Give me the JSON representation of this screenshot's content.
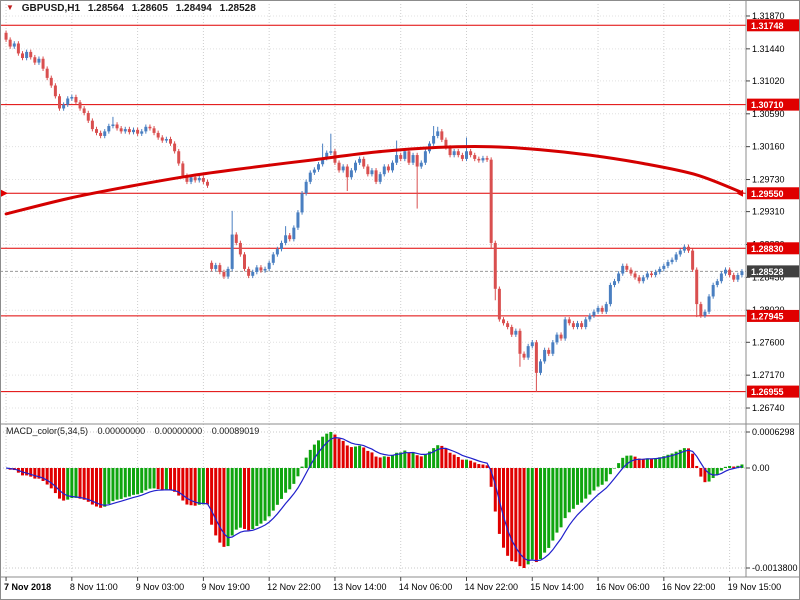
{
  "symbol_line": {
    "symbol": "GBPUSD,H1",
    "open": "1.28564",
    "high": "1.28605",
    "low": "1.28494",
    "close": "1.28528"
  },
  "macd_panel": {
    "label": "MACD_color(5,34,5)",
    "value1": "0.00000000",
    "value2": "0.00000000",
    "value3": "0.00089019",
    "axis": {
      "top": "0.0006298",
      "zero": "0.00",
      "bottom": "-0.0013800"
    }
  },
  "colors": {
    "bull": "#4a7fc1",
    "bear": "#d94f4f",
    "level_line": "#e00000",
    "ma_line": "#d40000",
    "badge_level": "#e00000",
    "badge_current": "#404040",
    "macd_up": "#0fa50f",
    "macd_down": "#e00000",
    "signal_line": "#2020cc",
    "grid_v": "#cdcdcd",
    "grid_h": "#e0e0e0",
    "frame": "#8c8c8c",
    "axis_text": "#000000"
  },
  "chart_data": {
    "type": "candlestick",
    "title": "GBPUSD,H1",
    "symbol": "GBPUSD",
    "timeframe": "H1",
    "price_range": {
      "top": 1.32066,
      "bottom": 1.26544
    },
    "price_axis_ticks": [
      "1.31870",
      "1.31440",
      "1.31020",
      "1.30590",
      "1.30160",
      "1.29730",
      "1.29310",
      "1.28880",
      "1.28450",
      "1.28020",
      "1.27600",
      "1.27170",
      "1.26740"
    ],
    "time_ticks": [
      {
        "label": "7 Nov 2018",
        "bar": 0
      },
      {
        "label": "8 Nov 11:00",
        "bar": 16
      },
      {
        "label": "9 Nov 03:00",
        "bar": 32
      },
      {
        "label": "9 Nov 19:00",
        "bar": 48
      },
      {
        "label": "12 Nov 22:00",
        "bar": 64
      },
      {
        "label": "13 Nov 14:00",
        "bar": 80
      },
      {
        "label": "14 Nov 06:00",
        "bar": 96
      },
      {
        "label": "14 Nov 22:00",
        "bar": 112
      },
      {
        "label": "15 Nov 14:00",
        "bar": 128
      },
      {
        "label": "16 Nov 06:00",
        "bar": 144
      },
      {
        "label": "16 Nov 22:00",
        "bar": 160
      },
      {
        "label": "19 Nov 15:00",
        "bar": 176
      }
    ],
    "level_lines": [
      {
        "price": 1.31748,
        "label": "1.31748"
      },
      {
        "price": 1.3071,
        "label": "1.30710"
      },
      {
        "price": 1.2955,
        "label": "1.29550",
        "edge_arrows": true
      },
      {
        "price": 1.2883,
        "label": "1.28830"
      },
      {
        "price": 1.27945,
        "label": "1.27945"
      },
      {
        "price": 1.26955,
        "label": "1.26955"
      }
    ],
    "current_price": {
      "value": 1.28528,
      "label": "1.28528"
    },
    "default_wick": 0.0003,
    "open_overrides": {
      "0": 1.3165,
      "50": 1.2864
    },
    "wick_overrides": {
      "26": {
        "h": 1.3055
      },
      "55": {
        "h": 1.2932
      },
      "68": {
        "h": 1.2912
      },
      "77": {
        "h": 1.302
      },
      "79": {
        "h": 1.3033
      },
      "83": {
        "l": 1.2958
      },
      "95": {
        "h": 1.3024
      },
      "100": {
        "l": 1.2935
      },
      "104": {
        "h": 1.3043
      },
      "105": {
        "h": 1.3042
      },
      "112": {
        "h": 1.3028
      },
      "118": {
        "l": 1.2882
      },
      "119": {
        "l": 1.2815
      },
      "125": {
        "l": 1.2728
      },
      "129": {
        "l": 1.2695
      },
      "165": {
        "h": 1.2888
      },
      "168": {
        "l": 1.2793
      }
    },
    "closes": [
      1.3156,
      1.3147,
      1.3151,
      1.3138,
      1.3132,
      1.314,
      1.3133,
      1.3126,
      1.3131,
      1.3118,
      1.3106,
      1.3096,
      1.3082,
      1.3066,
      1.3071,
      1.3079,
      1.3081,
      1.3074,
      1.3066,
      1.306,
      1.305,
      1.3039,
      1.3034,
      1.303,
      1.3036,
      1.3043,
      1.3045,
      1.304,
      1.3036,
      1.3039,
      1.3035,
      1.3038,
      1.3033,
      1.3036,
      1.3042,
      1.304,
      1.3034,
      1.3028,
      1.3024,
      1.3026,
      1.302,
      1.301,
      1.2994,
      1.2978,
      1.297,
      1.2976,
      1.2972,
      1.2975,
      1.297,
      1.2965,
      1.2856,
      1.2861,
      1.2852,
      1.2846,
      1.2856,
      1.2901,
      1.289,
      1.2875,
      1.2856,
      1.2847,
      1.2852,
      1.2858,
      1.2854,
      1.2856,
      1.2864,
      1.2875,
      1.2882,
      1.289,
      1.29,
      1.2895,
      1.291,
      1.293,
      1.2955,
      1.297,
      1.2982,
      1.2986,
      1.2993,
      1.3001,
      1.3008,
      1.301,
      1.2995,
      1.2985,
      1.299,
      1.2976,
      1.2985,
      1.2995,
      1.3,
      1.299,
      1.298,
      1.2985,
      1.297,
      1.298,
      1.299,
      1.2985,
      1.2995,
      1.3005,
      1.3,
      1.301,
      1.2995,
      1.3005,
      1.299,
      1.2995,
      1.301,
      1.302,
      1.303,
      1.3036,
      1.3025,
      1.3015,
      1.3005,
      1.301,
      1.3005,
      1.3,
      1.301,
      1.3005,
      1.3,
      1.2998,
      1.3001,
      1.2999,
      1.289,
      1.283,
      1.279,
      1.2785,
      1.278,
      1.277,
      1.2775,
      1.2745,
      1.274,
      1.2755,
      1.276,
      1.272,
      1.2735,
      1.275,
      1.2745,
      1.276,
      1.277,
      1.2765,
      1.279,
      1.2785,
      1.278,
      1.2785,
      1.278,
      1.279,
      1.2795,
      1.28,
      1.2805,
      1.28,
      1.281,
      1.2835,
      1.284,
      1.285,
      1.286,
      1.2855,
      1.285,
      1.2845,
      1.284,
      1.2845,
      1.285,
      1.2848,
      1.2852,
      1.2856,
      1.286,
      1.2865,
      1.2868,
      1.2875,
      1.288,
      1.2885,
      1.288,
      1.2855,
      1.281,
      1.2795,
      1.28,
      1.282,
      1.2835,
      1.284,
      1.285,
      1.2855,
      1.2848,
      1.2842,
      1.2848,
      1.28528
    ],
    "ma_anchor_points": [
      [
        0,
        1.2928
      ],
      [
        15,
        1.2948
      ],
      [
        30,
        1.2964
      ],
      [
        45,
        1.2978
      ],
      [
        60,
        1.2989
      ],
      [
        75,
        1.2999
      ],
      [
        90,
        1.3009
      ],
      [
        105,
        1.3015
      ],
      [
        118,
        1.3016
      ],
      [
        130,
        1.3012
      ],
      [
        142,
        1.3005
      ],
      [
        155,
        1.2994
      ],
      [
        168,
        1.2979
      ],
      [
        179,
        1.2956
      ]
    ],
    "macd": {
      "fast": 5,
      "slow": 34,
      "signal_period": 5,
      "axis_labels": [
        "0.0006298",
        "0.00",
        "-0.0013800"
      ]
    }
  }
}
